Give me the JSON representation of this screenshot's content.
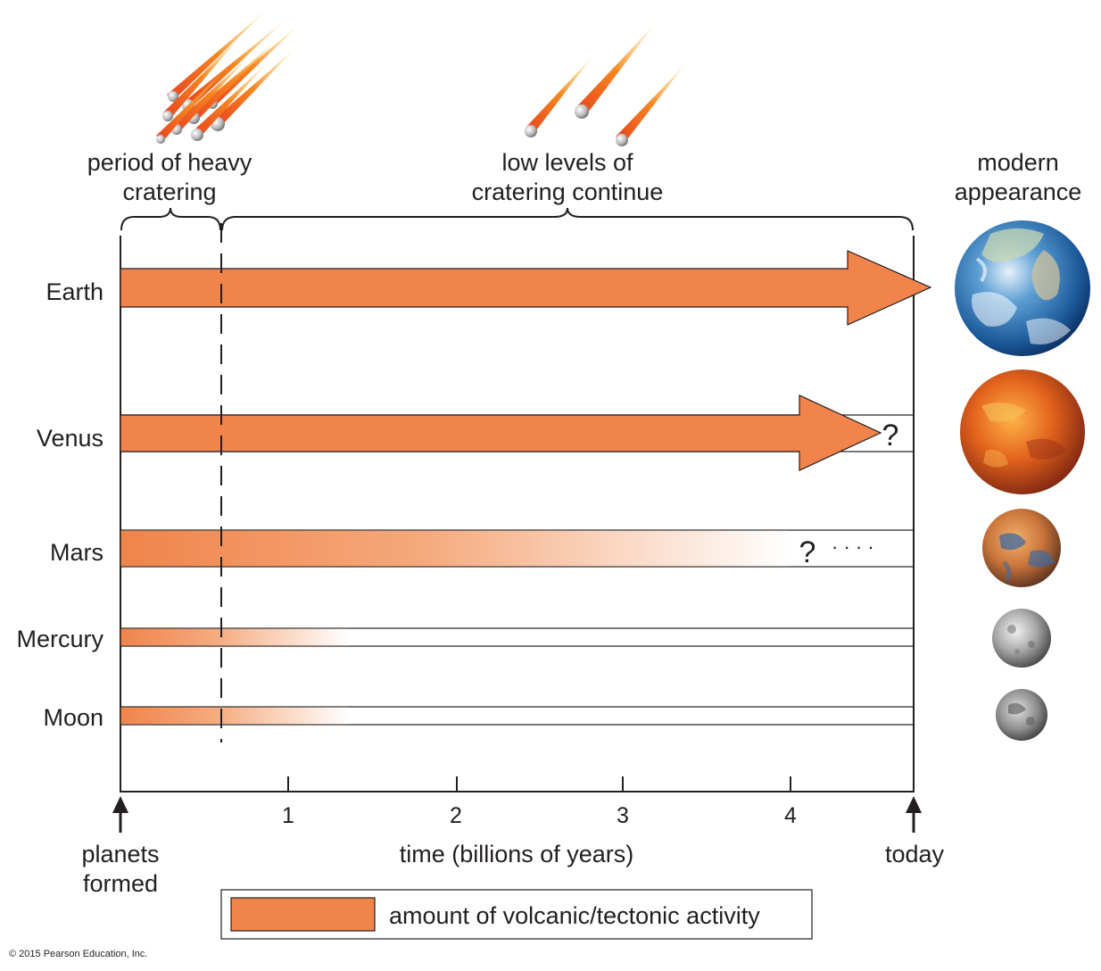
{
  "header": {
    "heavy_cratering": [
      "period of heavy",
      "cratering"
    ],
    "low_cratering": [
      "low levels of",
      "cratering continue"
    ],
    "modern_appearance": [
      "modern",
      "appearance"
    ]
  },
  "rows": [
    {
      "name": "Earth",
      "activity": "arrow_to_today"
    },
    {
      "name": "Venus",
      "activity": "arrow_uncertain_end",
      "uncertain_mark": "?"
    },
    {
      "name": "Mars",
      "activity": "fading_bar",
      "uncertain_mark": "?",
      "continuation": "· · · ·"
    },
    {
      "name": "Mercury",
      "activity": "short_fading_bar"
    },
    {
      "name": "Moon",
      "activity": "short_fading_bar"
    }
  ],
  "axis": {
    "ticks": [
      "1",
      "2",
      "3",
      "4"
    ],
    "start_label": [
      "planets",
      "formed"
    ],
    "end_label": "today",
    "title": "time (billions of years)"
  },
  "legend": {
    "label": "amount of volcanic/tectonic activity"
  },
  "footer": {
    "copyright": "© 2015 Pearson Education, Inc."
  },
  "colors": {
    "activity": "#f0844b",
    "line": "#231f20"
  }
}
